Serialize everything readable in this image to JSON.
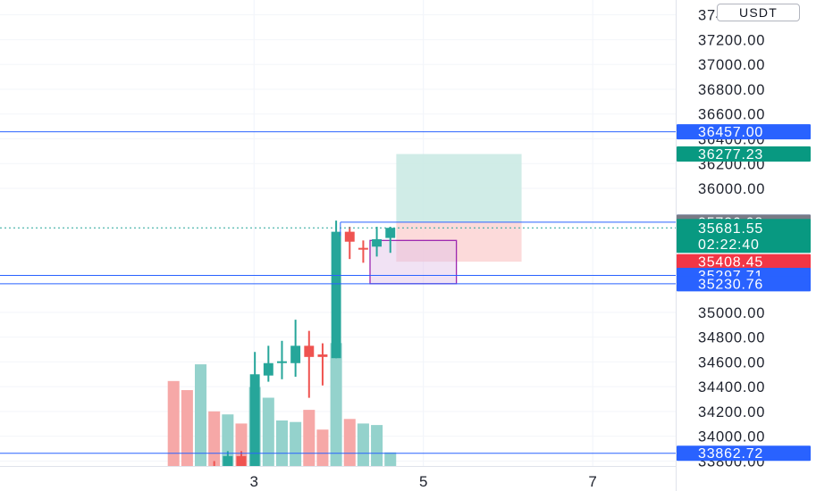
{
  "currency_button": {
    "label": "USDT"
  },
  "colors": {
    "up": "#26a69a",
    "down": "#ef5350",
    "up_volume": "#94d2cc",
    "down_volume": "#f6a8a7",
    "level_line": "#2962ff",
    "tag_blue": "#2962ff",
    "tag_gray": "#787b86",
    "tag_green": "#089981",
    "tag_red": "#f23645",
    "rect_purple": "#9c27b0",
    "long_profit": "#c8e9e3",
    "long_loss": "#fbd3d3"
  },
  "chart_data": {
    "type": "candlestick",
    "y_axis": {
      "ylim": [
        33760,
        37520
      ],
      "ticks": [
        "37400.00",
        "37200.00",
        "37000.00",
        "36800.00",
        "36600.00",
        "36400.00",
        "36200.00",
        "36000.00",
        "35000.00",
        "34800.00",
        "34600.00",
        "34400.00",
        "34200.00",
        "34000.00",
        "33800.00"
      ]
    },
    "x_axis": {
      "xlim": [
        0,
        7.98
      ],
      "ticks": [
        "3",
        "5",
        "7"
      ],
      "tick_values": [
        3,
        5,
        7
      ]
    },
    "candles": [
      {
        "x": 2.37,
        "open": 33740,
        "close": 33752,
        "high": 33760,
        "low": 33710
      },
      {
        "x": 2.53,
        "open": 33760,
        "close": 33690,
        "high": 33800,
        "low": 33670
      },
      {
        "x": 2.69,
        "open": 33760,
        "close": 33840,
        "high": 33880,
        "low": 33730
      },
      {
        "x": 2.85,
        "open": 33840,
        "close": 33750,
        "high": 33880,
        "low": 33700
      },
      {
        "x": 3.01,
        "open": 33760,
        "close": 34500,
        "high": 34680,
        "low": 33760
      },
      {
        "x": 3.17,
        "open": 34490,
        "close": 34590,
        "high": 34730,
        "low": 34440
      },
      {
        "x": 3.33,
        "open": 34600,
        "close": 34605,
        "high": 34770,
        "low": 34460
      },
      {
        "x": 3.49,
        "open": 34590,
        "close": 34730,
        "high": 34940,
        "low": 34480
      },
      {
        "x": 3.65,
        "open": 34730,
        "close": 34640,
        "high": 34850,
        "low": 34310
      },
      {
        "x": 3.81,
        "open": 34660,
        "close": 34640,
        "high": 34750,
        "low": 34410
      },
      {
        "x": 3.97,
        "open": 34630,
        "close": 35650,
        "high": 35740,
        "low": 34630
      },
      {
        "x": 4.13,
        "open": 35650,
        "close": 35570,
        "high": 35690,
        "low": 35430
      },
      {
        "x": 4.29,
        "open": 35520,
        "close": 35510,
        "high": 35580,
        "low": 35400
      },
      {
        "x": 4.45,
        "open": 35530,
        "close": 35590,
        "high": 35690,
        "low": 35450
      },
      {
        "x": 4.61,
        "open": 35600,
        "close": 35681.55,
        "high": 35690,
        "low": 35480
      }
    ],
    "volume": [
      {
        "x": 2.05,
        "value": 0.56,
        "dir": "down"
      },
      {
        "x": 2.21,
        "value": 0.5,
        "dir": "down"
      },
      {
        "x": 2.37,
        "value": 0.67,
        "dir": "up"
      },
      {
        "x": 2.53,
        "value": 0.36,
        "dir": "down"
      },
      {
        "x": 2.69,
        "value": 0.34,
        "dir": "up"
      },
      {
        "x": 2.85,
        "value": 0.28,
        "dir": "down"
      },
      {
        "x": 3.01,
        "value": 0.52,
        "dir": "up"
      },
      {
        "x": 3.17,
        "value": 0.45,
        "dir": "up"
      },
      {
        "x": 3.33,
        "value": 0.3,
        "dir": "up"
      },
      {
        "x": 3.49,
        "value": 0.29,
        "dir": "up"
      },
      {
        "x": 3.65,
        "value": 0.37,
        "dir": "down"
      },
      {
        "x": 3.81,
        "value": 0.24,
        "dir": "down"
      },
      {
        "x": 3.97,
        "value": 0.81,
        "dir": "up"
      },
      {
        "x": 4.13,
        "value": 0.31,
        "dir": "down"
      },
      {
        "x": 4.29,
        "value": 0.28,
        "dir": "up"
      },
      {
        "x": 4.45,
        "value": 0.27,
        "dir": "up"
      },
      {
        "x": 4.61,
        "value": 0.09,
        "dir": "up"
      }
    ],
    "horizontal_levels": [
      36457.0,
      35297.71,
      35230.76,
      33862.72
    ],
    "ray": {
      "x_start": 4.02,
      "value": 35726.98
    },
    "current_price_line": 35681.55,
    "rectangle": {
      "x1": 4.37,
      "x2": 5.39,
      "top": 35580,
      "bottom": 35230.76
    },
    "long_position": {
      "x1": 4.68,
      "x2": 6.16,
      "entry": 35727.0,
      "target": 36277.23,
      "stop": 35408.45
    },
    "price_tags": [
      {
        "text": "36457.00",
        "value": 36457.0,
        "color": "#2962ff"
      },
      {
        "text": "36277.23",
        "value": 36277.23,
        "color": "#089981"
      },
      {
        "text": "35727.00",
        "value": 35727.0,
        "color": "#2962ff"
      },
      {
        "text": "35726.98",
        "value": 35726.98,
        "color": "#787b86"
      },
      {
        "text": "35408.45",
        "value": 35408.45,
        "color": "#f23645"
      },
      {
        "text": "35297.71",
        "value": 35297.71,
        "color": "#2962ff"
      },
      {
        "text": "35230.76",
        "value": 35230.76,
        "color": "#2962ff"
      },
      {
        "text": "33862.72",
        "value": 33862.72,
        "color": "#2962ff"
      }
    ],
    "current_price_tag": {
      "price": "35681.55",
      "countdown": "02:22:40",
      "color": "#089981"
    }
  }
}
